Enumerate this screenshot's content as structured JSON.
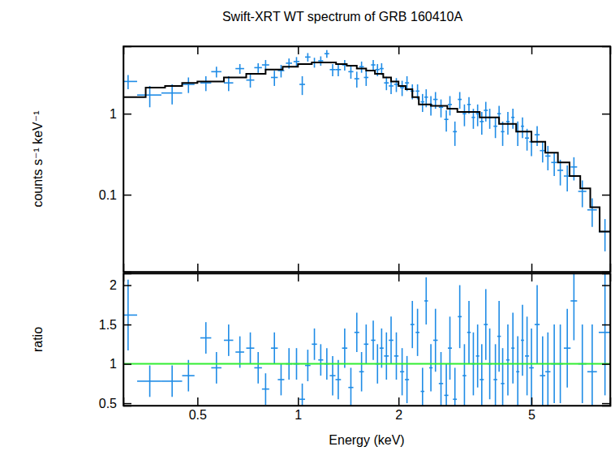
{
  "chart_data": [
    {
      "type": "scatter",
      "title": "Swift-XRT WT spectrum of GRB 160410A",
      "ylabel": "counts s⁻¹ keV⁻¹",
      "log": true,
      "tick_labels": "y",
      "xlim": [
        0.3,
        8.6
      ],
      "ylim": [
        0.0112,
        6.8
      ],
      "xticks": [
        0.5,
        1,
        2,
        5
      ],
      "yticks": [
        0.1,
        1
      ],
      "series": [
        {
          "type": "scatter",
          "marker": "cross",
          "color": "#1f8ce6",
          "x": [
            0.31,
            0.36,
            0.42,
            0.47,
            0.53,
            0.57,
            0.62,
            0.67,
            0.72,
            0.76,
            0.8,
            0.85,
            0.89,
            0.94,
            0.99,
            1.03,
            1.07,
            1.12,
            1.17,
            1.22,
            1.27,
            1.32,
            1.38,
            1.44,
            1.5,
            1.55,
            1.6,
            1.68,
            1.73,
            1.78,
            1.84,
            1.9,
            1.97,
            2.05,
            2.12,
            2.2,
            2.28,
            2.36,
            2.42,
            2.5,
            2.58,
            2.68,
            2.78,
            2.85,
            2.95,
            3.05,
            3.15,
            3.25,
            3.35,
            3.45,
            3.55,
            3.65,
            3.75,
            3.9,
            4.0,
            4.1,
            4.25,
            4.4,
            4.55,
            4.7,
            4.85,
            5.0,
            5.2,
            5.4,
            5.6,
            5.85,
            6.1,
            6.4,
            6.7,
            7.1,
            7.6,
            8.3
          ],
          "x_errors": [
            0.02,
            0.03,
            0.03,
            0.02,
            0.02,
            0.02,
            0.02,
            0.02,
            0.02,
            0.02,
            0.02,
            0.02,
            0.02,
            0.02,
            0.02,
            0.02,
            0.02,
            0.02,
            0.02,
            0.02,
            0.025,
            0.025,
            0.025,
            0.025,
            0.025,
            0.025,
            0.025,
            0.025,
            0.025,
            0.025,
            0.03,
            0.03,
            0.03,
            0.03,
            0.03,
            0.03,
            0.03,
            0.03,
            0.03,
            0.03,
            0.04,
            0.04,
            0.04,
            0.04,
            0.04,
            0.04,
            0.04,
            0.04,
            0.04,
            0.04,
            0.05,
            0.05,
            0.05,
            0.05,
            0.05,
            0.05,
            0.05,
            0.05,
            0.05,
            0.05,
            0.07,
            0.08,
            0.09,
            0.1,
            0.1,
            0.12,
            0.12,
            0.15,
            0.15,
            0.2,
            0.25,
            0.35
          ],
          "values": [
            2.5,
            1.7,
            1.8,
            2.3,
            2.4,
            3.3,
            2.4,
            3.6,
            2.6,
            3.7,
            4.0,
            2.8,
            3.4,
            4.2,
            4.4,
            2.3,
            5.0,
            4.3,
            4.5,
            5.5,
            3.5,
            3.5,
            4.0,
            3.3,
            2.7,
            3.8,
            2.8,
            4.0,
            3.5,
            3.6,
            2.4,
            2.2,
            2.3,
            2.1,
            2.4,
            1.9,
            1.9,
            1.4,
            1.6,
            1.3,
            1.5,
            1.2,
            0.85,
            1.3,
            0.6,
            1.5,
            1.0,
            1.3,
            0.9,
            1.0,
            0.8,
            1.1,
            0.9,
            0.7,
            1.0,
            0.6,
            0.8,
            0.9,
            0.6,
            0.7,
            0.5,
            0.45,
            0.55,
            0.35,
            0.3,
            0.25,
            0.2,
            0.17,
            0.22,
            0.11,
            0.065,
            0.035
          ],
          "errors": [
            0.5,
            0.5,
            0.5,
            0.5,
            0.5,
            0.5,
            0.5,
            0.5,
            0.5,
            0.5,
            0.6,
            0.6,
            0.6,
            0.6,
            0.6,
            0.6,
            0.6,
            0.6,
            0.6,
            0.6,
            0.6,
            0.6,
            0.6,
            0.6,
            0.6,
            0.6,
            0.6,
            0.6,
            0.6,
            0.6,
            0.45,
            0.45,
            0.45,
            0.45,
            0.5,
            0.4,
            0.4,
            0.35,
            0.4,
            0.35,
            0.35,
            0.3,
            0.25,
            0.35,
            0.2,
            0.35,
            0.3,
            0.3,
            0.25,
            0.3,
            0.25,
            0.3,
            0.25,
            0.2,
            0.25,
            0.2,
            0.25,
            0.25,
            0.2,
            0.2,
            0.15,
            0.15,
            0.15,
            0.1,
            0.1,
            0.08,
            0.07,
            0.06,
            0.07,
            0.04,
            0.025,
            0.015
          ]
        },
        {
          "type": "line",
          "line_style": "step",
          "color": "#000000",
          "x": [
            0.3,
            0.35,
            0.4,
            0.45,
            0.5,
            0.6,
            0.7,
            0.8,
            0.9,
            1.0,
            1.1,
            1.2,
            1.3,
            1.4,
            1.5,
            1.6,
            1.7,
            1.8,
            1.9,
            2.0,
            2.1,
            2.2,
            2.3,
            2.5,
            2.8,
            3.0,
            3.5,
            4.0,
            4.5,
            5.0,
            5.5,
            6.0,
            6.5,
            7.0,
            7.5,
            8.0,
            8.6
          ],
          "values": [
            1.6,
            2.1,
            2.2,
            2.4,
            2.5,
            2.8,
            3.1,
            3.5,
            3.8,
            4.1,
            4.3,
            4.3,
            4.1,
            3.9,
            3.6,
            3.4,
            3.1,
            2.8,
            2.5,
            2.2,
            2.0,
            1.6,
            1.3,
            1.25,
            1.15,
            1.05,
            0.9,
            0.75,
            0.6,
            0.45,
            0.33,
            0.25,
            0.17,
            0.12,
            0.07,
            0.035,
            0.035
          ]
        }
      ]
    },
    {
      "type": "scatter",
      "xlabel": "Energy (keV)",
      "ylabel": "ratio",
      "log": "x",
      "xlim": [
        0.3,
        8.6
      ],
      "ylim": [
        0.47,
        2.15
      ],
      "xticks": [
        0.5,
        1,
        2,
        5
      ],
      "yticks": [
        0.5,
        1,
        1.5,
        2
      ],
      "series": [
        {
          "type": "scatter",
          "marker": "cross",
          "color": "#1f8ce6",
          "x": [
            0.31,
            0.36,
            0.42,
            0.47,
            0.53,
            0.57,
            0.62,
            0.67,
            0.72,
            0.76,
            0.8,
            0.85,
            0.89,
            0.94,
            0.99,
            1.03,
            1.07,
            1.12,
            1.17,
            1.22,
            1.27,
            1.32,
            1.38,
            1.44,
            1.5,
            1.55,
            1.6,
            1.68,
            1.73,
            1.78,
            1.84,
            1.9,
            1.97,
            2.05,
            2.12,
            2.2,
            2.28,
            2.36,
            2.42,
            2.5,
            2.58,
            2.68,
            2.78,
            2.85,
            2.95,
            3.05,
            3.15,
            3.25,
            3.35,
            3.45,
            3.55,
            3.65,
            3.75,
            3.9,
            4.0,
            4.1,
            4.25,
            4.4,
            4.55,
            4.7,
            4.85,
            5.0,
            5.2,
            5.4,
            5.6,
            5.85,
            6.1,
            6.4,
            6.7,
            7.1,
            7.6,
            8.3
          ],
          "x_errors": [
            0.02,
            0.03,
            0.03,
            0.02,
            0.02,
            0.02,
            0.02,
            0.02,
            0.02,
            0.02,
            0.02,
            0.02,
            0.02,
            0.02,
            0.02,
            0.02,
            0.02,
            0.02,
            0.02,
            0.02,
            0.025,
            0.025,
            0.025,
            0.025,
            0.025,
            0.025,
            0.025,
            0.025,
            0.025,
            0.025,
            0.03,
            0.03,
            0.03,
            0.03,
            0.03,
            0.03,
            0.03,
            0.03,
            0.03,
            0.03,
            0.04,
            0.04,
            0.04,
            0.04,
            0.04,
            0.04,
            0.04,
            0.04,
            0.04,
            0.04,
            0.05,
            0.05,
            0.05,
            0.05,
            0.05,
            0.05,
            0.05,
            0.05,
            0.05,
            0.05,
            0.07,
            0.08,
            0.09,
            0.1,
            0.1,
            0.12,
            0.12,
            0.15,
            0.15,
            0.2,
            0.25,
            0.35
          ],
          "values": [
            1.62,
            0.78,
            0.78,
            0.85,
            1.33,
            0.95,
            1.3,
            1.15,
            1.2,
            0.95,
            0.68,
            1.2,
            0.8,
            1.0,
            1.0,
            0.55,
            0.98,
            1.25,
            1.05,
            1.0,
            0.85,
            0.8,
            1.2,
            0.7,
            1.4,
            0.9,
            1.25,
            1.3,
            1.0,
            1.2,
            1.1,
            1.3,
            1.1,
            0.9,
            0.8,
            1.5,
            1.4,
            0.65,
            1.8,
            0.95,
            1.3,
            0.75,
            0.6,
            1.2,
            0.55,
            1.6,
            0.85,
            1.4,
            1.0,
            1.1,
            0.8,
            1.5,
            1.0,
            0.8,
            1.35,
            0.75,
            1.05,
            1.2,
            0.9,
            1.3,
            1.1,
            0.95,
            1.5,
            0.85,
            0.9,
            1.0,
            1.0,
            1.2,
            1.8,
            1.0,
            0.9,
            1.4
          ],
          "errors": [
            0.45,
            0.2,
            0.2,
            0.2,
            0.2,
            0.2,
            0.2,
            0.2,
            0.2,
            0.2,
            0.2,
            0.2,
            0.2,
            0.2,
            0.2,
            0.2,
            0.2,
            0.2,
            0.2,
            0.2,
            0.25,
            0.25,
            0.25,
            0.25,
            0.25,
            0.25,
            0.25,
            0.25,
            0.25,
            0.25,
            0.3,
            0.3,
            0.3,
            0.3,
            0.3,
            0.3,
            0.3,
            0.3,
            0.3,
            0.3,
            0.4,
            0.4,
            0.4,
            0.4,
            0.4,
            0.4,
            0.4,
            0.4,
            0.4,
            0.4,
            0.45,
            0.45,
            0.45,
            0.45,
            0.45,
            0.45,
            0.45,
            0.45,
            0.45,
            0.45,
            0.5,
            0.5,
            0.5,
            0.5,
            0.5,
            0.5,
            0.5,
            0.5,
            0.5,
            0.5,
            0.6,
            0.8
          ]
        },
        {
          "type": "line",
          "color": "#33ee33",
          "x": [
            0.3,
            8.6
          ],
          "values": [
            1,
            1
          ]
        }
      ]
    }
  ]
}
